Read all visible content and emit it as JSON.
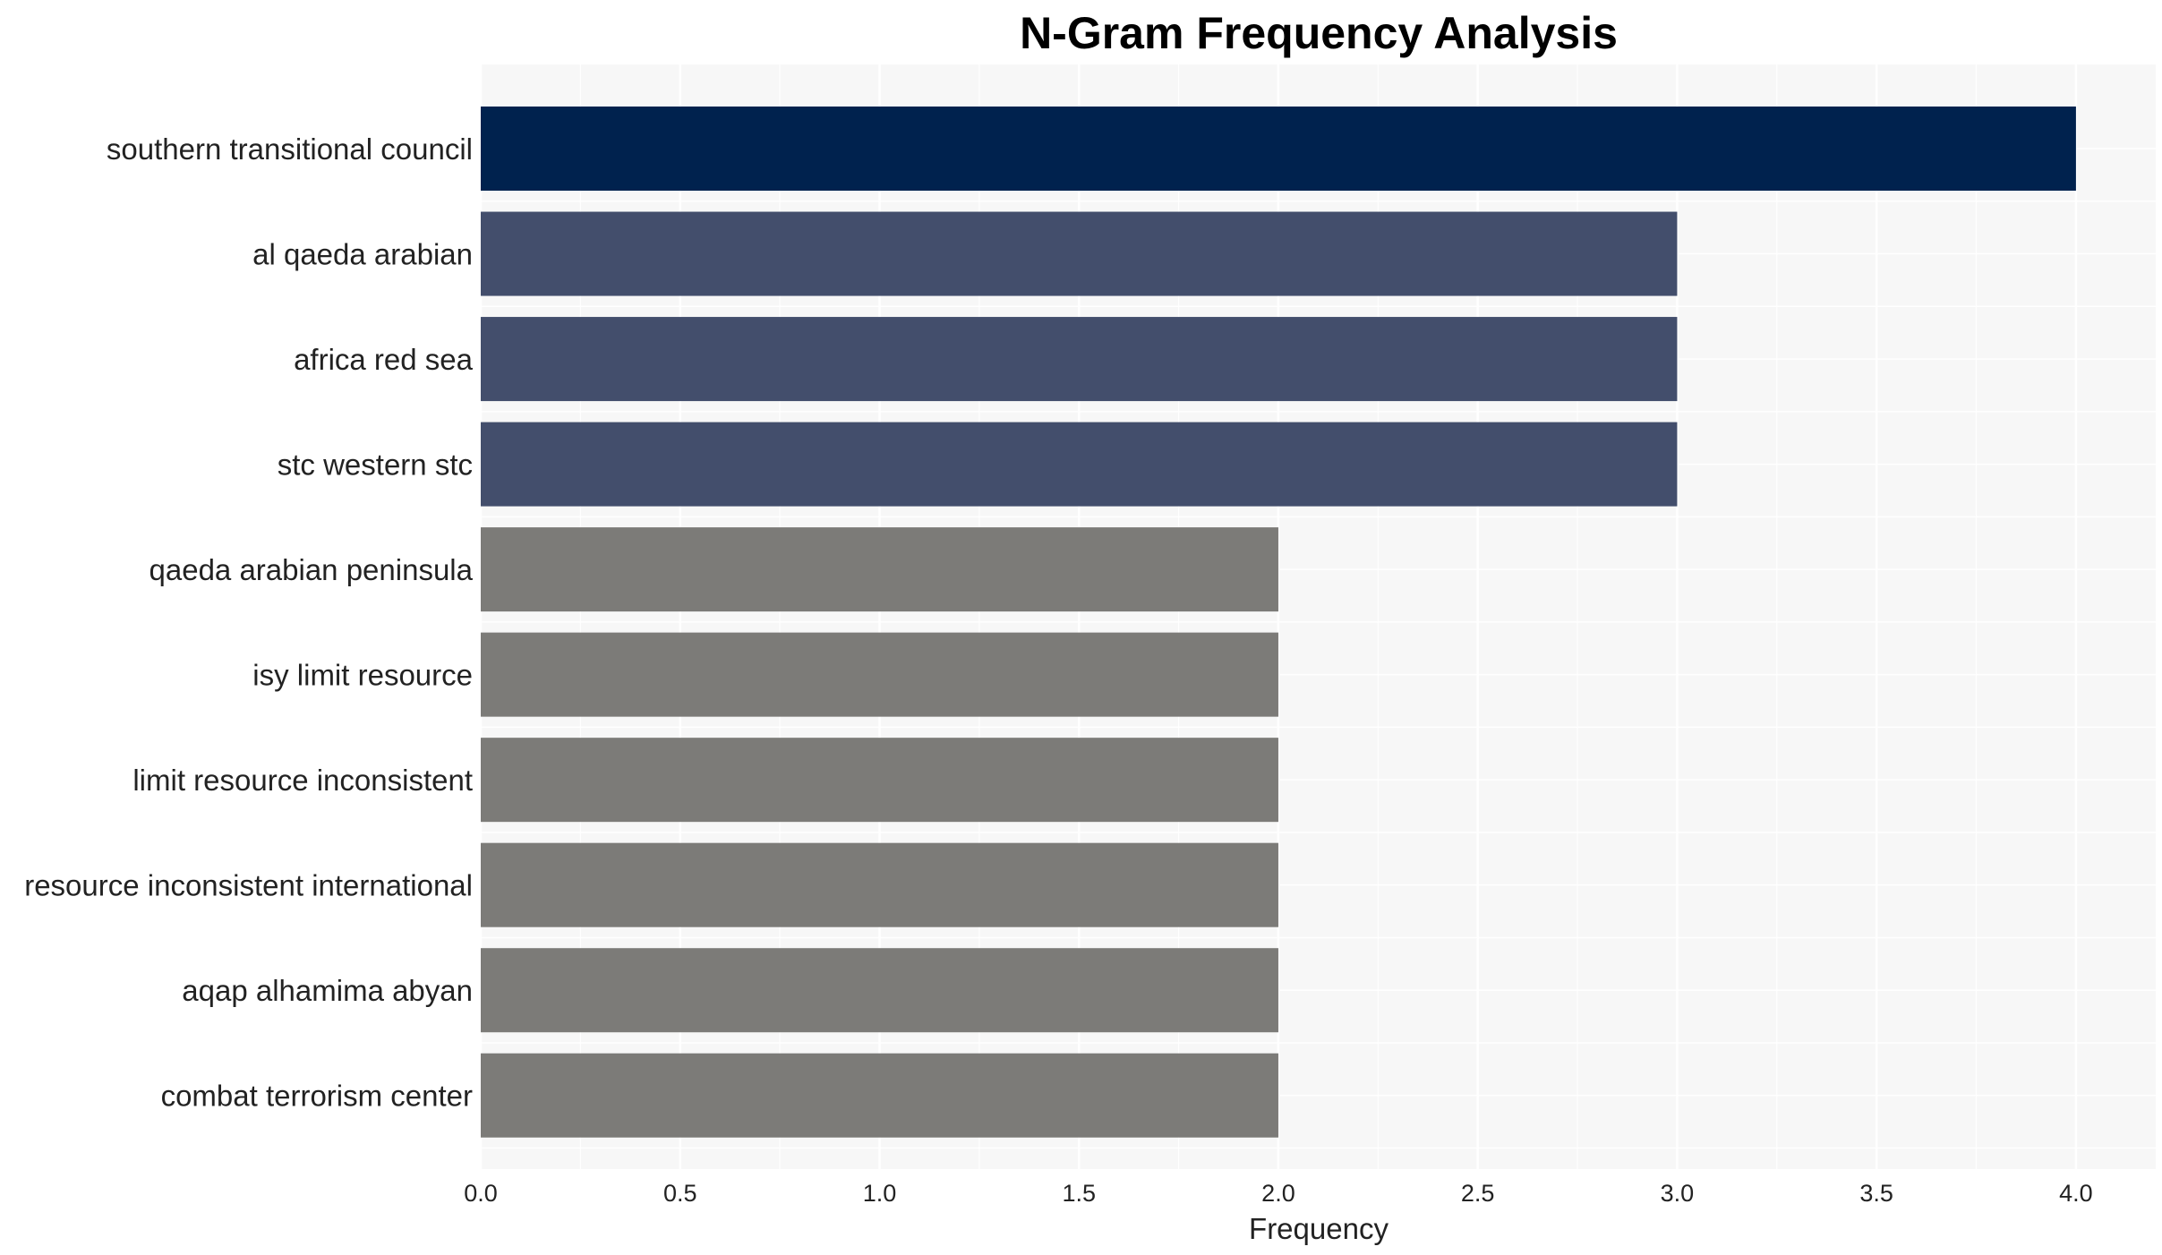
{
  "chart_data": {
    "type": "bar",
    "orientation": "horizontal",
    "title": "N-Gram Frequency Analysis",
    "xlabel": "Frequency",
    "ylabel": "",
    "xlim": [
      0,
      4.2
    ],
    "x_ticks": [
      "0.0",
      "0.5",
      "1.0",
      "1.5",
      "2.0",
      "2.5",
      "3.0",
      "3.5",
      "4.0"
    ],
    "grid": true,
    "categories": [
      "southern transitional council",
      "al qaeda arabian",
      "africa red sea",
      "stc western stc",
      "qaeda arabian peninsula",
      "isy limit resource",
      "limit resource inconsistent",
      "resource inconsistent international",
      "aqap alhamima abyan",
      "combat terrorism center"
    ],
    "values": [
      4,
      3,
      3,
      3,
      2,
      2,
      2,
      2,
      2,
      2
    ],
    "colors": {
      "4": "#00224e",
      "3": "#434e6c",
      "2": "#7c7b78"
    },
    "plot_background": "#f7f7f7",
    "grid_color": "#ffffff"
  }
}
